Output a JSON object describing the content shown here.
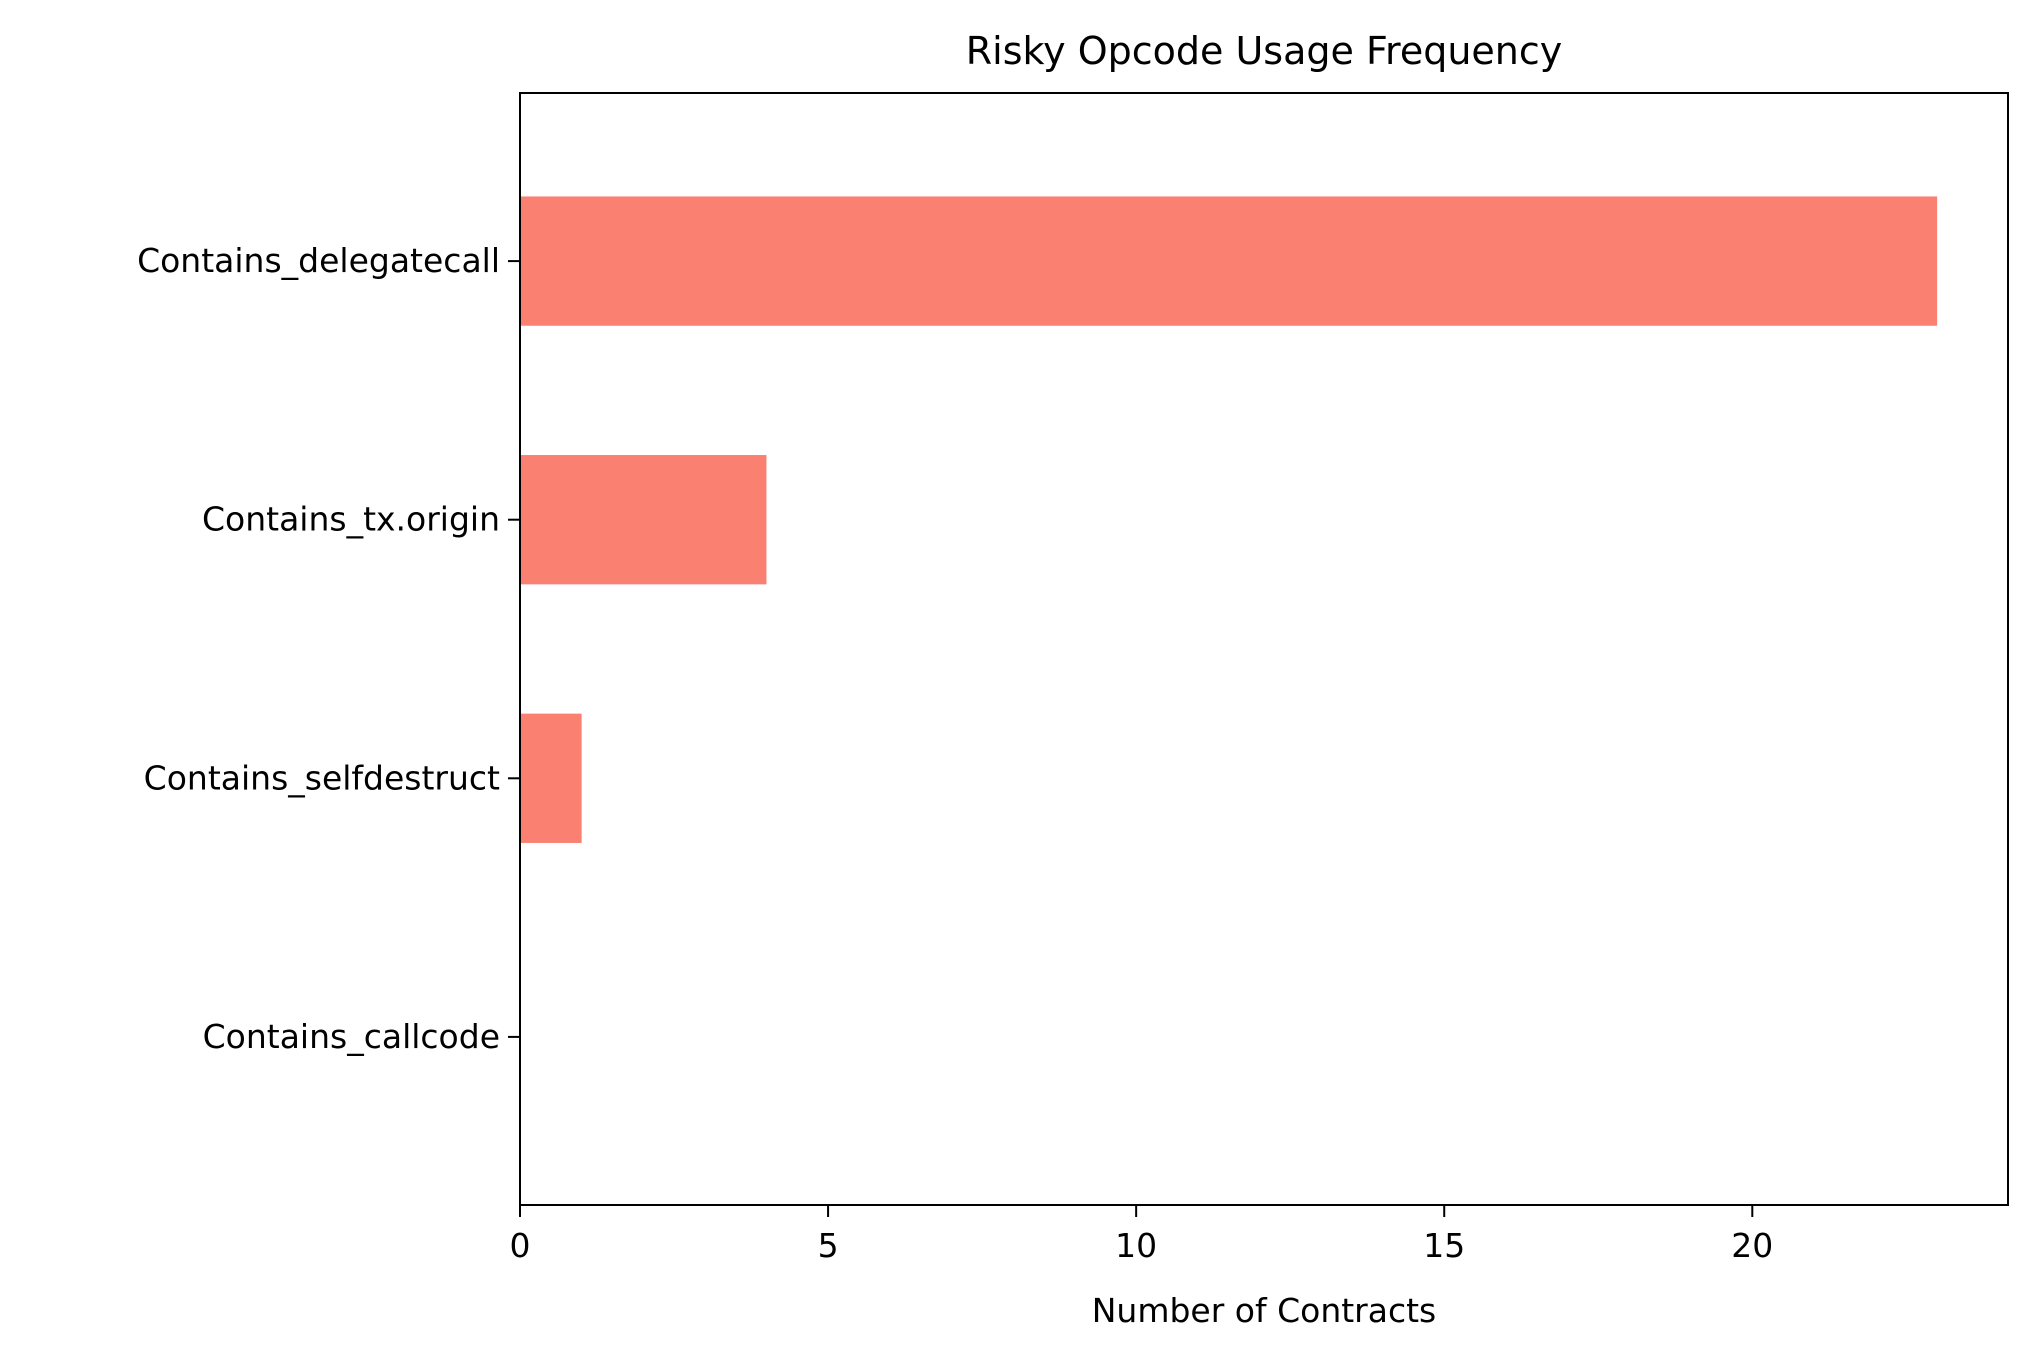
{
  "chart_data": {
    "type": "bar",
    "orientation": "horizontal",
    "title": "Risky Opcode Usage Frequency",
    "xlabel": "Number of Contracts",
    "ylabel": "",
    "categories": [
      "Contains_delegatecall",
      "Contains_tx.origin",
      "Contains_selfdestruct",
      "Contains_callcode"
    ],
    "values": [
      23,
      4,
      1,
      0
    ],
    "xlim": [
      0,
      24.15
    ],
    "xticks": [
      0,
      5,
      10,
      15,
      20
    ],
    "grid": false,
    "legend": "none",
    "bar_color": "#fa8072"
  }
}
